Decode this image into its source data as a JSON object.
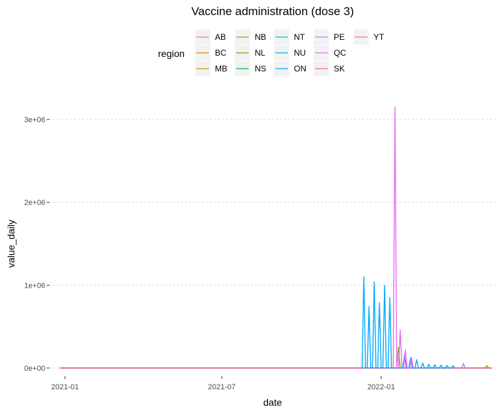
{
  "chart_data": {
    "type": "line",
    "title": "Vaccine administration (dose 3)",
    "xlabel": "date",
    "ylabel": "value_daily",
    "legend_title": "region",
    "legend_position": "top",
    "grid": "horizontal-major-dotted",
    "x_type": "date",
    "xlim": [
      "2020-12-14",
      "2022-05-15"
    ],
    "ylim": [
      0,
      3200000
    ],
    "x_ticks": [
      {
        "value": "2021-01-01",
        "label": "2021-01"
      },
      {
        "value": "2021-07-01",
        "label": "2021-07"
      },
      {
        "value": "2022-01-01",
        "label": "2022-01"
      }
    ],
    "y_ticks": [
      {
        "value": 0,
        "label": "0e+00"
      },
      {
        "value": 1000000,
        "label": "1e+06"
      },
      {
        "value": 2000000,
        "label": "2e+06"
      },
      {
        "value": 3000000,
        "label": "3e+06"
      }
    ],
    "series": [
      {
        "name": "AB",
        "color": "#F8766D",
        "points": []
      },
      {
        "name": "BC",
        "color": "#E58700",
        "points": [
          [
            "2022-05-01",
            0
          ],
          [
            "2022-05-03",
            30000
          ],
          [
            "2022-05-05",
            0
          ]
        ]
      },
      {
        "name": "MB",
        "color": "#C99800",
        "points": []
      },
      {
        "name": "NB",
        "color": "#A3A500",
        "points": []
      },
      {
        "name": "NL",
        "color": "#6BB100",
        "points": [
          [
            "2022-01-19",
            0
          ],
          [
            "2022-01-21",
            250000
          ],
          [
            "2022-01-23",
            0
          ]
        ]
      },
      {
        "name": "NS",
        "color": "#00BA38",
        "points": []
      },
      {
        "name": "NT",
        "color": "#00BFC4",
        "points": []
      },
      {
        "name": "NU",
        "color": "#00B0F6",
        "points": []
      },
      {
        "name": "ON",
        "color": "#00A9FF",
        "points": [
          [
            "2021-12-10",
            0
          ],
          [
            "2021-12-12",
            1100000
          ],
          [
            "2021-12-14",
            0
          ],
          [
            "2021-12-16",
            0
          ],
          [
            "2021-12-18",
            740000
          ],
          [
            "2021-12-20",
            0
          ],
          [
            "2021-12-22",
            0
          ],
          [
            "2021-12-24",
            1040000
          ],
          [
            "2021-12-26",
            0
          ],
          [
            "2021-12-28",
            0
          ],
          [
            "2021-12-30",
            790000
          ],
          [
            "2022-01-01",
            0
          ],
          [
            "2022-01-03",
            0
          ],
          [
            "2022-01-05",
            1000000
          ],
          [
            "2022-01-07",
            0
          ],
          [
            "2022-01-09",
            0
          ],
          [
            "2022-01-11",
            850000
          ],
          [
            "2022-01-13",
            0
          ],
          [
            "2022-01-26",
            0
          ],
          [
            "2022-01-28",
            160000
          ],
          [
            "2022-01-30",
            0
          ],
          [
            "2022-02-02",
            0
          ],
          [
            "2022-02-04",
            120000
          ],
          [
            "2022-02-06",
            0
          ],
          [
            "2022-02-09",
            0
          ],
          [
            "2022-02-11",
            100000
          ],
          [
            "2022-02-13",
            0
          ],
          [
            "2022-02-16",
            0
          ],
          [
            "2022-02-18",
            60000
          ],
          [
            "2022-02-20",
            0
          ],
          [
            "2022-02-23",
            0
          ],
          [
            "2022-02-25",
            45000
          ],
          [
            "2022-02-27",
            0
          ],
          [
            "2022-03-02",
            0
          ],
          [
            "2022-03-04",
            40000
          ],
          [
            "2022-03-06",
            0
          ],
          [
            "2022-03-09",
            0
          ],
          [
            "2022-03-11",
            35000
          ],
          [
            "2022-03-13",
            0
          ],
          [
            "2022-03-16",
            0
          ],
          [
            "2022-03-18",
            30000
          ],
          [
            "2022-03-20",
            0
          ],
          [
            "2022-03-23",
            0
          ],
          [
            "2022-03-25",
            28000
          ],
          [
            "2022-03-27",
            0
          ]
        ]
      },
      {
        "name": "PE",
        "color": "#9590FF",
        "points": [
          [
            "2022-04-04",
            0
          ],
          [
            "2022-04-06",
            55000
          ],
          [
            "2022-04-08",
            0
          ]
        ]
      },
      {
        "name": "QC",
        "color": "#E76BF3",
        "points": [
          [
            "2022-01-15",
            0
          ],
          [
            "2022-01-17",
            3150000
          ],
          [
            "2022-01-19",
            0
          ],
          [
            "2022-01-21",
            0
          ],
          [
            "2022-01-23",
            460000
          ],
          [
            "2022-01-25",
            0
          ],
          [
            "2022-01-27",
            0
          ],
          [
            "2022-01-29",
            220000
          ],
          [
            "2022-01-31",
            0
          ],
          [
            "2022-02-03",
            0
          ],
          [
            "2022-02-05",
            130000
          ],
          [
            "2022-02-07",
            0
          ]
        ]
      },
      {
        "name": "SK",
        "color": "#FF62BC",
        "points": []
      },
      {
        "name": "YT",
        "color": "#FF6C91",
        "points": []
      }
    ]
  }
}
